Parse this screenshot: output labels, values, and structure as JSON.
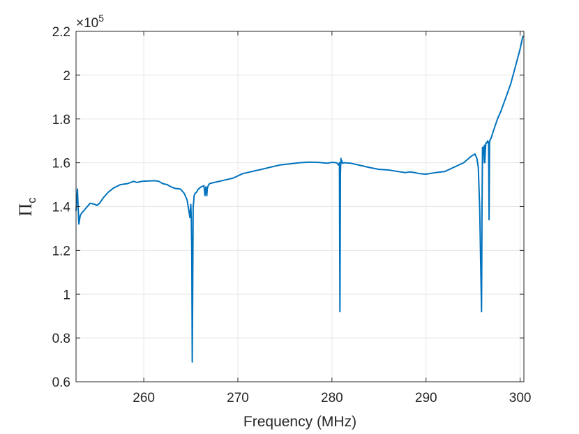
{
  "chart_data": {
    "type": "line",
    "xlabel": "Frequency (MHz)",
    "ylabel_main": "Π",
    "ylabel_sub": "c",
    "y_exponent_prefix": "×10",
    "y_exponent_power": "5",
    "xlim": [
      252.8,
      300.4
    ],
    "ylim": [
      0.6,
      2.2
    ],
    "y_multiplier": 100000,
    "grid": true,
    "x_ticks": [
      {
        "value": 260,
        "label": "260"
      },
      {
        "value": 270,
        "label": "270"
      },
      {
        "value": 280,
        "label": "280"
      },
      {
        "value": 290,
        "label": "290"
      },
      {
        "value": 300,
        "label": "300"
      }
    ],
    "y_ticks": [
      {
        "value": 0.6,
        "label": "0.6"
      },
      {
        "value": 0.8,
        "label": "0.8"
      },
      {
        "value": 1.0,
        "label": "1"
      },
      {
        "value": 1.2,
        "label": "1.2"
      },
      {
        "value": 1.4,
        "label": "1.4"
      },
      {
        "value": 1.6,
        "label": "1.6"
      },
      {
        "value": 1.8,
        "label": "1.8"
      },
      {
        "value": 2.0,
        "label": "2"
      },
      {
        "value": 2.2,
        "label": "2.2"
      }
    ],
    "series": [
      {
        "color": "#0072BD",
        "x": [
          252.8,
          252.95,
          253.1,
          253.25,
          253.4,
          253.8,
          254.3,
          254.8,
          255.0,
          255.3,
          255.7,
          256.2,
          256.8,
          257.5,
          258.3,
          258.9,
          259.3,
          259.8,
          260.5,
          261.2,
          261.6,
          262.0,
          262.5,
          262.9,
          263.3,
          263.9,
          264.3,
          264.6,
          264.8,
          264.9,
          265.0,
          265.05,
          265.1,
          265.15,
          265.2,
          265.25,
          265.3,
          265.35,
          265.45,
          265.6,
          265.8,
          266.1,
          266.4,
          266.5,
          266.6,
          266.65,
          266.7,
          266.75,
          266.8,
          266.85,
          266.9,
          267.0,
          267.5,
          268.5,
          269.5,
          270.5,
          271.5,
          272.5,
          273.5,
          274.5,
          275.5,
          276.5,
          277.5,
          278.5,
          279.5,
          280.0,
          280.5,
          280.7,
          280.8,
          280.85,
          280.9,
          280.95,
          281.0,
          281.05,
          281.1,
          281.3,
          282.0,
          283.0,
          284.0,
          285.0,
          286.0,
          287.0,
          287.8,
          288.2,
          288.7,
          289.3,
          290.0,
          291.0,
          292.0,
          293.0,
          294.0,
          294.8,
          295.2,
          295.4,
          295.55,
          295.7,
          295.8,
          295.9,
          295.95,
          296.0,
          296.05,
          296.1,
          296.15,
          296.2,
          296.25,
          296.3,
          296.35,
          296.45,
          296.55,
          296.65,
          296.7,
          296.75,
          296.8,
          296.85,
          296.9,
          297.2,
          297.6,
          298.0,
          298.5,
          299.0,
          299.5,
          300.0,
          300.3
        ],
        "y": [
          1.38,
          1.48,
          1.32,
          1.36,
          1.37,
          1.39,
          1.415,
          1.41,
          1.405,
          1.415,
          1.44,
          1.465,
          1.485,
          1.5,
          1.505,
          1.515,
          1.51,
          1.515,
          1.517,
          1.518,
          1.515,
          1.505,
          1.5,
          1.49,
          1.483,
          1.48,
          1.46,
          1.43,
          1.38,
          1.35,
          1.41,
          1.35,
          1.2,
          0.69,
          1.0,
          1.4,
          1.42,
          1.45,
          1.46,
          1.465,
          1.48,
          1.49,
          1.495,
          1.45,
          1.49,
          1.48,
          1.45,
          1.48,
          1.49,
          1.495,
          1.5,
          1.505,
          1.51,
          1.52,
          1.53,
          1.55,
          1.56,
          1.57,
          1.58,
          1.59,
          1.595,
          1.6,
          1.603,
          1.602,
          1.598,
          1.602,
          1.6,
          1.59,
          1.6,
          0.92,
          1.55,
          1.62,
          1.6,
          1.61,
          1.598,
          1.6,
          1.598,
          1.588,
          1.578,
          1.57,
          1.567,
          1.56,
          1.555,
          1.558,
          1.556,
          1.55,
          1.548,
          1.555,
          1.56,
          1.58,
          1.6,
          1.63,
          1.64,
          1.62,
          1.58,
          1.4,
          1.15,
          0.92,
          1.4,
          1.67,
          1.6,
          1.67,
          1.66,
          1.68,
          1.6,
          1.65,
          1.69,
          1.69,
          1.7,
          1.69,
          1.34,
          1.7,
          1.7,
          1.71,
          1.71,
          1.75,
          1.8,
          1.84,
          1.9,
          1.96,
          2.04,
          2.12,
          2.18
        ]
      }
    ]
  }
}
